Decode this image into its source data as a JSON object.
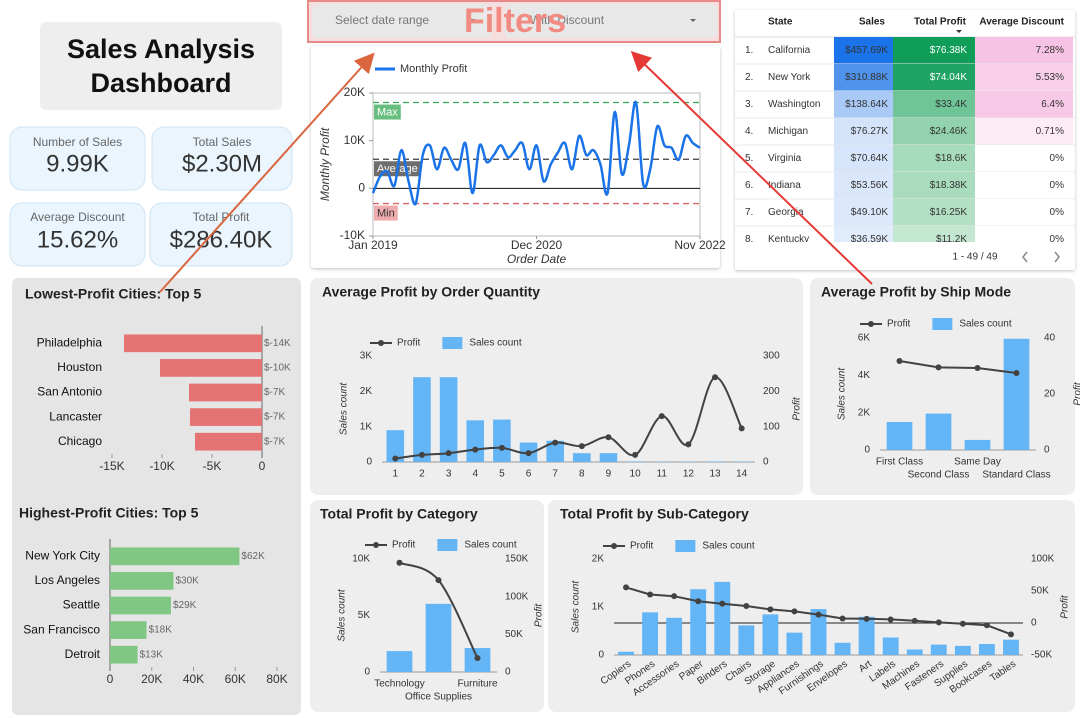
{
  "title": "Sales Analysis Dashboard",
  "filters": {
    "annotation": "Filters",
    "date_range": "Select date range",
    "discount": "With Discount"
  },
  "kpis": [
    {
      "label": "Number of Sales",
      "value": "9.99K"
    },
    {
      "label": "Total Sales",
      "value": "$2.30M"
    },
    {
      "label": "Average Discount",
      "value": "15.62%"
    },
    {
      "label": "Total Profit",
      "value": "$286.40K"
    }
  ],
  "table": {
    "columns": [
      "State",
      "Sales",
      "Total Profit",
      "Average Discount"
    ],
    "rows": [
      [
        "1.",
        "California",
        "$457.69K",
        "$76.38K",
        "7.28%"
      ],
      [
        "2.",
        "New York",
        "$310.88K",
        "$74.04K",
        "5.53%"
      ],
      [
        "3.",
        "Washington",
        "$138.64K",
        "$33.4K",
        "6.4%"
      ],
      [
        "4.",
        "Michigan",
        "$76.27K",
        "$24.46K",
        "0.71%"
      ],
      [
        "5.",
        "Virginia",
        "$70.64K",
        "$18.6K",
        "0%"
      ],
      [
        "6.",
        "Indiana",
        "$53.56K",
        "$18.38K",
        "0%"
      ],
      [
        "7.",
        "Georgia",
        "$49.10K",
        "$16.25K",
        "0%"
      ],
      [
        "8.",
        "Kentucky",
        "$36.59K",
        "$11.2K",
        "0%"
      ]
    ],
    "pagination": "1 - 49 / 49"
  },
  "chart_data": [
    {
      "type": "line",
      "xlabel": "Order Date",
      "ylabel": "Monthly Profit",
      "x": [
        "2019-01",
        "2019-02",
        "2019-03",
        "2019-04",
        "2019-05",
        "2019-06",
        "2019-07",
        "2019-08",
        "2019-09",
        "2019-10",
        "2019-11",
        "2019-12",
        "2020-01",
        "2020-02",
        "2020-03",
        "2020-04",
        "2020-05",
        "2020-06",
        "2020-07",
        "2020-08",
        "2020-09",
        "2020-10",
        "2020-11",
        "2020-12",
        "2021-01",
        "2021-02",
        "2021-03",
        "2021-04",
        "2021-05",
        "2021-06",
        "2021-07",
        "2021-08",
        "2021-09",
        "2021-10",
        "2021-11",
        "2021-12",
        "2022-01",
        "2022-02",
        "2022-03",
        "2022-04",
        "2022-05",
        "2022-06",
        "2022-07",
        "2022-08",
        "2022-09",
        "2022-10",
        "2022-11"
      ],
      "series": [
        {
          "name": "Monthly Profit",
          "color": "#1a73e8",
          "values": [
            -1000,
            2500,
            3500,
            500,
            8000,
            1500,
            -3200,
            7000,
            9000,
            4000,
            8500,
            6000,
            4000,
            9500,
            -1000,
            9000,
            5500,
            7000,
            9000,
            6500,
            8000,
            9500,
            4000,
            9000,
            1500,
            5000,
            7500,
            9500,
            4000,
            11000,
            7000,
            8000,
            5000,
            -1000,
            16000,
            3000,
            9000,
            18000,
            1000,
            4000,
            13000,
            9000,
            8500,
            6000,
            11000,
            9500,
            8500
          ]
        }
      ],
      "xticks": [
        {
          "value": "2019-01",
          "label": "Jan 2019"
        },
        {
          "value": "2020-12",
          "label": "Dec 2020"
        },
        {
          "value": "2022-11",
          "label": "Nov 2022"
        }
      ],
      "ylim": [
        -10000,
        20000
      ],
      "yticks": [
        {
          "value": -10000,
          "label": "-10K"
        },
        0,
        {
          "value": 10000,
          "label": "10K"
        },
        {
          "value": 20000,
          "label": "20K"
        }
      ],
      "reference_lines": [
        {
          "label": "Max",
          "value": 18000,
          "color": "#34a853"
        },
        {
          "label": "Average",
          "value": 6100,
          "color": "#3c3c3c"
        },
        {
          "label": "Min",
          "value": -3200,
          "color": "#e06666"
        }
      ]
    },
    {
      "type": "bar",
      "orientation": "horizontal",
      "title": "Lowest-Profit Cities: Top 5",
      "color": "#e57373",
      "categories": [
        "Philadelphia",
        "Houston",
        "San Antonio",
        "Lancaster",
        "Chicago"
      ],
      "values": [
        -13800,
        -10200,
        -7300,
        -7200,
        -6700
      ],
      "value_labels": [
        "$-14K",
        "$-10K",
        "$-7K",
        "$-7K",
        "$-7K"
      ],
      "xlim": [
        -15000,
        0
      ],
      "xticks": [
        {
          "value": -15000,
          "label": "-15K"
        },
        {
          "value": -10000,
          "label": "-10K"
        },
        {
          "value": -5000,
          "label": "-5K"
        },
        0
      ]
    },
    {
      "type": "bar",
      "orientation": "horizontal",
      "title": "Highest-Profit Cities: Top 5",
      "color": "#81c784",
      "categories": [
        "New York City",
        "Los Angeles",
        "Seattle",
        "San Francisco",
        "Detroit"
      ],
      "values": [
        62000,
        30400,
        29200,
        17500,
        13200
      ],
      "value_labels": [
        "$62K",
        "$30K",
        "$29K",
        "$18K",
        "$13K"
      ],
      "xlim": [
        0,
        80000
      ],
      "xticks": [
        0,
        {
          "value": 20000,
          "label": "20K"
        },
        {
          "value": 40000,
          "label": "40K"
        },
        {
          "value": 60000,
          "label": "60K"
        },
        {
          "value": 80000,
          "label": "80K"
        }
      ]
    },
    {
      "type": "combo",
      "title": "Average Profit by Order Quantity",
      "ylabel": "Sales count",
      "y2label": "Profit",
      "smooth": true,
      "categories": [
        "1",
        "2",
        "3",
        "4",
        "5",
        "6",
        "7",
        "8",
        "9",
        "10",
        "11",
        "12",
        "13",
        "14"
      ],
      "series": [
        {
          "name": "Profit",
          "color": "#424242",
          "axis": "y2",
          "values": [
            10,
            20,
            25,
            35,
            40,
            25,
            55,
            45,
            70,
            20,
            130,
            50,
            240,
            95
          ]
        },
        {
          "name": "Sales count",
          "color": "#64b5f6",
          "values": [
            900,
            2400,
            2400,
            1180,
            1200,
            550,
            600,
            250,
            250,
            15,
            10,
            10,
            15,
            12
          ]
        }
      ],
      "ylim": [
        0,
        3000
      ],
      "yticks": [
        0,
        {
          "value": 1000,
          "label": "1K"
        },
        {
          "value": 2000,
          "label": "2K"
        },
        {
          "value": 3000,
          "label": "3K"
        }
      ],
      "y2lim": [
        0,
        300
      ],
      "y2ticks": [
        0,
        100,
        200,
        300
      ]
    },
    {
      "type": "combo",
      "title": "Average Profit by Ship Mode",
      "ylabel": "Sales count",
      "y2label": "Profit",
      "categories": [
        "First Class",
        "Second Class",
        "Same Day",
        "Standard Class"
      ],
      "series": [
        {
          "name": "Profit",
          "color": "#424242",
          "axis": "y2",
          "values": [
            31.8,
            29.5,
            29.3,
            27.5
          ]
        },
        {
          "name": "Sales count",
          "color": "#64b5f6",
          "values": [
            1500,
            1950,
            540,
            5960
          ]
        }
      ],
      "ylim": [
        0,
        6000
      ],
      "yticks": [
        0,
        {
          "value": 2000,
          "label": "2K"
        },
        {
          "value": 4000,
          "label": "4K"
        },
        {
          "value": 6000,
          "label": "6K"
        }
      ],
      "y2lim": [
        0,
        40
      ],
      "y2ticks": [
        0,
        20,
        40
      ]
    },
    {
      "type": "combo",
      "title": "Total Profit by Category",
      "ylabel": "Sales count",
      "y2label": "Profit",
      "smooth": true,
      "categories": [
        "Technology",
        "Office Supplies",
        "Furniture"
      ],
      "series": [
        {
          "name": "Profit",
          "color": "#424242",
          "axis": "y2",
          "values": [
            145000,
            122000,
            18500
          ]
        },
        {
          "name": "Sales count",
          "color": "#64b5f6",
          "values": [
            1850,
            6030,
            2120
          ]
        }
      ],
      "ylim": [
        0,
        10000
      ],
      "yticks": [
        0,
        {
          "value": 5000,
          "label": "5K"
        },
        {
          "value": 10000,
          "label": "10K"
        }
      ],
      "y2lim": [
        0,
        150000
      ],
      "y2ticks": [
        0,
        {
          "value": 50000,
          "label": "50K"
        },
        {
          "value": 100000,
          "label": "100K"
        },
        {
          "value": 150000,
          "label": "150K"
        }
      ]
    },
    {
      "type": "combo",
      "title": "Total Profit by Sub-Category",
      "ylabel": "Sales count",
      "y2label": "Profit",
      "categories": [
        "Copiers",
        "Phones",
        "Accessories",
        "Paper",
        "Binders",
        "Chairs",
        "Storage",
        "Appliances",
        "Furnishings",
        "Envelopes",
        "Art",
        "Labels",
        "Machines",
        "Fasteners",
        "Supplies",
        "Bookcases",
        "Tables"
      ],
      "series": [
        {
          "name": "Profit",
          "color": "#424242",
          "axis": "y2",
          "values": [
            55600,
            44500,
            41900,
            34000,
            30200,
            26600,
            21300,
            18100,
            13100,
            6960,
            6530,
            5550,
            3380,
            950,
            -1190,
            -3470,
            -17700
          ]
        },
        {
          "name": "Sales count",
          "color": "#64b5f6",
          "values": [
            68,
            889,
            775,
            1370,
            1523,
            617,
            846,
            466,
            957,
            254,
            796,
            364,
            115,
            217,
            190,
            228,
            319
          ]
        }
      ],
      "ylim": [
        0,
        2000
      ],
      "yticks": [
        0,
        {
          "value": 1000,
          "label": "1K"
        },
        {
          "value": 2000,
          "label": "2K"
        }
      ],
      "y2lim": [
        -50000,
        100000
      ],
      "y2ticks": [
        {
          "value": -50000,
          "label": "-50K"
        },
        0,
        {
          "value": 50000,
          "label": "50K"
        },
        {
          "value": 100000,
          "label": "100K"
        }
      ]
    }
  ]
}
